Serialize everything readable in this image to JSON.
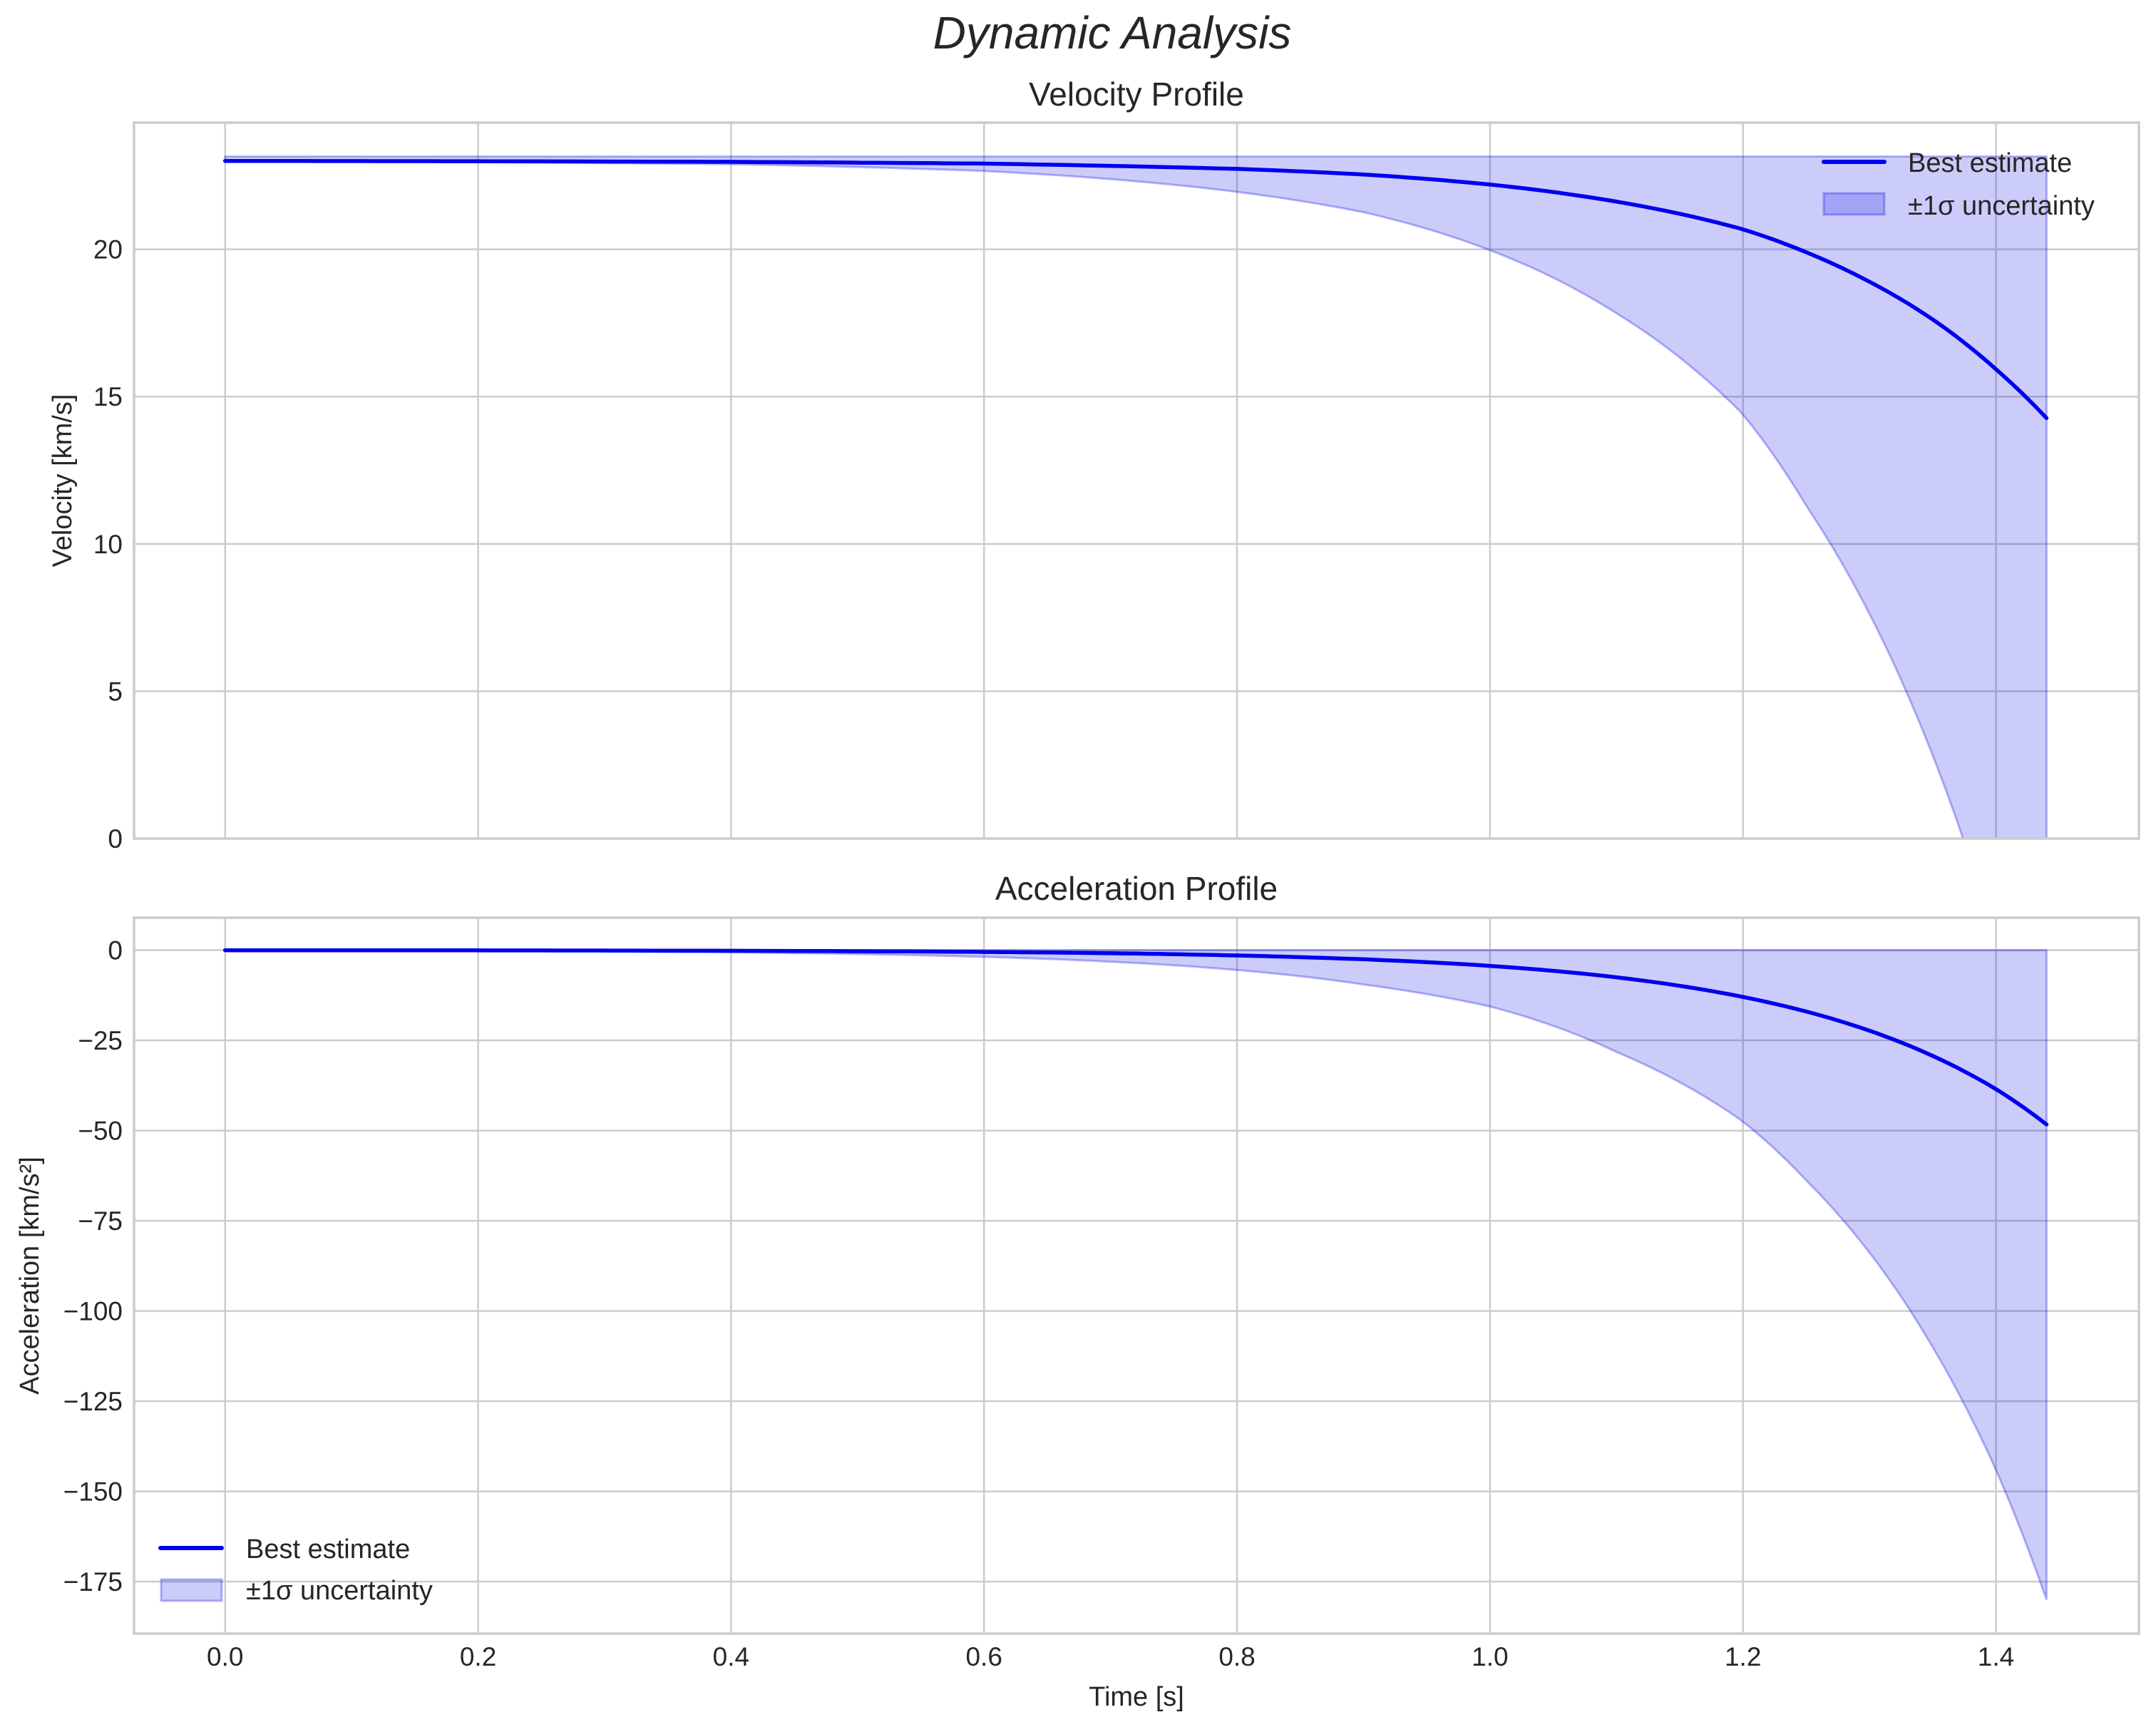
{
  "figure": {
    "suptitle": "Dynamic Analysis",
    "xlabel": "Time [s]",
    "colors": {
      "line": "#0000ee",
      "band_fill": "rgba(0,0,230,0.2)",
      "band_edge": "rgba(0,0,230,0.28)",
      "grid": "#cccccc",
      "text": "#262626"
    }
  },
  "chart_data": [
    {
      "type": "line",
      "title": "Velocity Profile",
      "xlabel": "",
      "ylabel": "Velocity [km/s]",
      "xlim": [
        -0.072,
        1.513
      ],
      "ylim": [
        0,
        24.3
      ],
      "grid": true,
      "legend_position": "upper right",
      "x_ticks": [
        "0.0",
        "0.2",
        "0.4",
        "0.6",
        "0.8",
        "1.0",
        "1.2",
        "1.4"
      ],
      "y_ticks": [
        0,
        5,
        10,
        15,
        20
      ],
      "y_tick_labels": [
        "0",
        "5",
        "10",
        "15",
        "20"
      ],
      "legend": [
        "Best estimate",
        "±1σ uncertainty"
      ],
      "x": [
        0.0,
        0.2,
        0.4,
        0.6,
        0.8,
        0.9,
        1.0,
        1.1,
        1.2,
        1.25,
        1.3,
        1.35,
        1.4,
        1.44
      ],
      "series": [
        {
          "name": "Best estimate",
          "kind": "line",
          "values": [
            23.0,
            22.99,
            22.97,
            22.91,
            22.73,
            22.54,
            22.2,
            21.62,
            20.68,
            19.9,
            18.9,
            17.62,
            15.93,
            14.27
          ]
        },
        {
          "name": "±1σ uncertainty (upper)",
          "kind": "band_upper",
          "values": [
            23.15,
            23.15,
            23.15,
            23.15,
            23.15,
            23.15,
            23.15,
            23.15,
            23.15,
            23.15,
            23.15,
            23.15,
            23.15,
            23.15
          ]
        },
        {
          "name": "±1σ uncertainty (lower)",
          "kind": "band_lower",
          "values": [
            22.99,
            22.96,
            22.89,
            22.66,
            21.95,
            21.26,
            19.97,
            17.83,
            14.4,
            11.3,
            7.63,
            2.83,
            -3.5,
            -9.85
          ]
        }
      ]
    },
    {
      "type": "line",
      "title": "Acceleration Profile",
      "xlabel": "Time [s]",
      "ylabel": "Acceleration [km/s²]",
      "xlim": [
        -0.072,
        1.513
      ],
      "ylim": [
        -189.4,
        9.0
      ],
      "grid": true,
      "legend_position": "lower left",
      "x_ticks": [
        "0.0",
        "0.2",
        "0.4",
        "0.6",
        "0.8",
        "1.0",
        "1.2",
        "1.4"
      ],
      "y_ticks": [
        0,
        -25,
        -50,
        -75,
        -100,
        -125,
        -150,
        -175
      ],
      "y_tick_labels": [
        "0",
        "−25",
        "−50",
        "−75",
        "−100",
        "−125",
        "−150",
        "−175"
      ],
      "legend": [
        "Best estimate",
        "±1σ uncertainty"
      ],
      "x": [
        0.0,
        0.2,
        0.4,
        0.6,
        0.8,
        0.9,
        1.0,
        1.1,
        1.2,
        1.25,
        1.3,
        1.35,
        1.4,
        1.44
      ],
      "series": [
        {
          "name": "Best estimate",
          "kind": "line",
          "values": [
            -0.02,
            -0.06,
            -0.17,
            -0.49,
            -1.47,
            -2.53,
            -4.36,
            -7.52,
            -12.97,
            -17.0,
            -22.3,
            -29.3,
            -38.5,
            -48.3
          ]
        },
        {
          "name": "±1σ uncertainty (upper)",
          "kind": "band_upper",
          "values": [
            0,
            0,
            0,
            0,
            0,
            0,
            0,
            0,
            0,
            0,
            0,
            0,
            0,
            0
          ]
        },
        {
          "name": "±1σ uncertainty (lower)",
          "kind": "band_lower",
          "values": [
            -0.07,
            -0.21,
            -0.62,
            -1.85,
            -5.5,
            -9.5,
            -15.6,
            -28.2,
            -47.5,
            -63.8,
            -83.8,
            -110.0,
            -144.0,
            -180.0
          ]
        }
      ]
    }
  ]
}
